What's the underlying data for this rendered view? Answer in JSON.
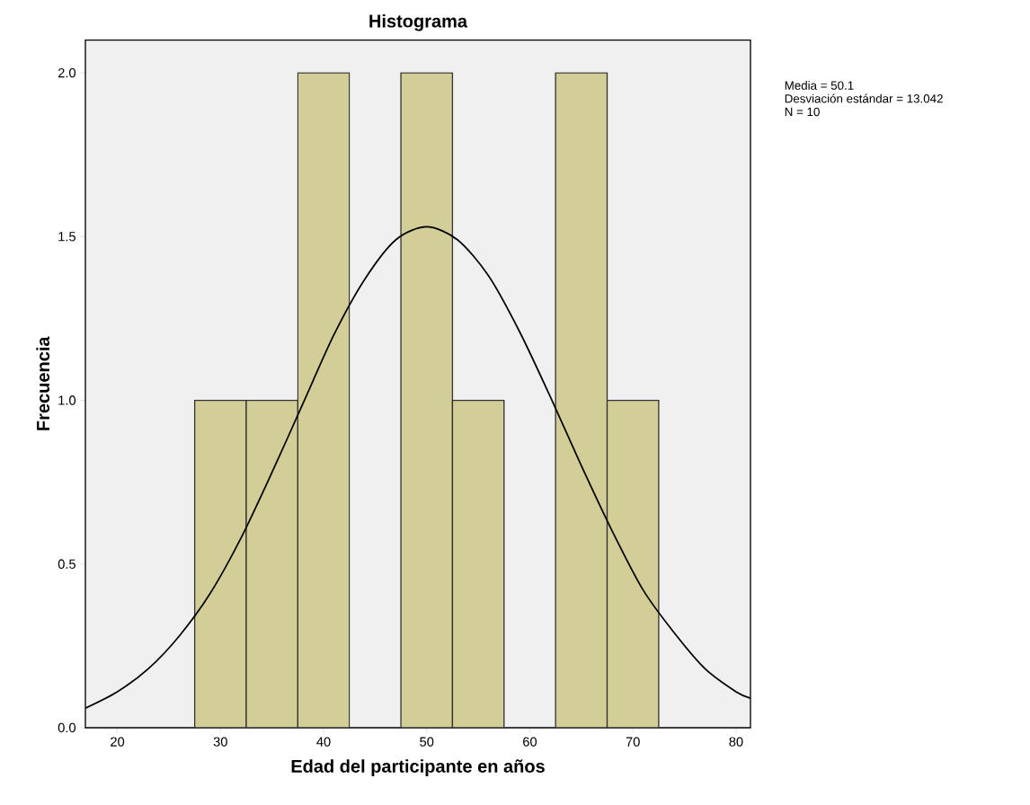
{
  "chart_data": {
    "type": "histogram",
    "title": "Histograma",
    "xlabel": "Edad del participante en años",
    "ylabel": "Frecuencia",
    "annotations": [
      "Media = 50.1",
      "Desviación estándar = 13.042",
      "N = 10"
    ],
    "xlim": [
      16.9,
      81.4
    ],
    "ylim": [
      0,
      2.1
    ],
    "xticks": [
      20,
      30,
      40,
      50,
      60,
      70,
      80
    ],
    "yticks": [
      {
        "value": 0,
        "label": "0.0"
      },
      {
        "value": 0.5,
        "label": "0.5"
      },
      {
        "value": 1,
        "label": "1.0"
      },
      {
        "value": 1.5,
        "label": "1.5"
      },
      {
        "value": 2,
        "label": "2.0"
      }
    ],
    "grid": false,
    "series": [
      {
        "color": "#d3ce97",
        "bins": [
          27.5,
          32.5,
          37.5,
          42.5,
          47.5,
          52.5,
          57.5,
          62.5,
          67.5,
          72.5
        ],
        "values": [
          1,
          1,
          2,
          0,
          2,
          1,
          0,
          2,
          1
        ]
      },
      {
        "type": "line",
        "color": "#000000",
        "x": [
          16.9,
          20,
          23,
          26,
          29,
          32,
          35,
          38,
          41,
          44,
          47,
          50,
          53,
          56,
          59,
          62,
          65,
          68,
          71,
          74,
          77,
          80,
          81.4
        ],
        "values": [
          0.06,
          0.11,
          0.18,
          0.28,
          0.41,
          0.58,
          0.78,
          0.99,
          1.2,
          1.37,
          1.49,
          1.53,
          1.49,
          1.38,
          1.21,
          1.01,
          0.8,
          0.6,
          0.42,
          0.29,
          0.18,
          0.11,
          0.09
        ]
      }
    ]
  }
}
